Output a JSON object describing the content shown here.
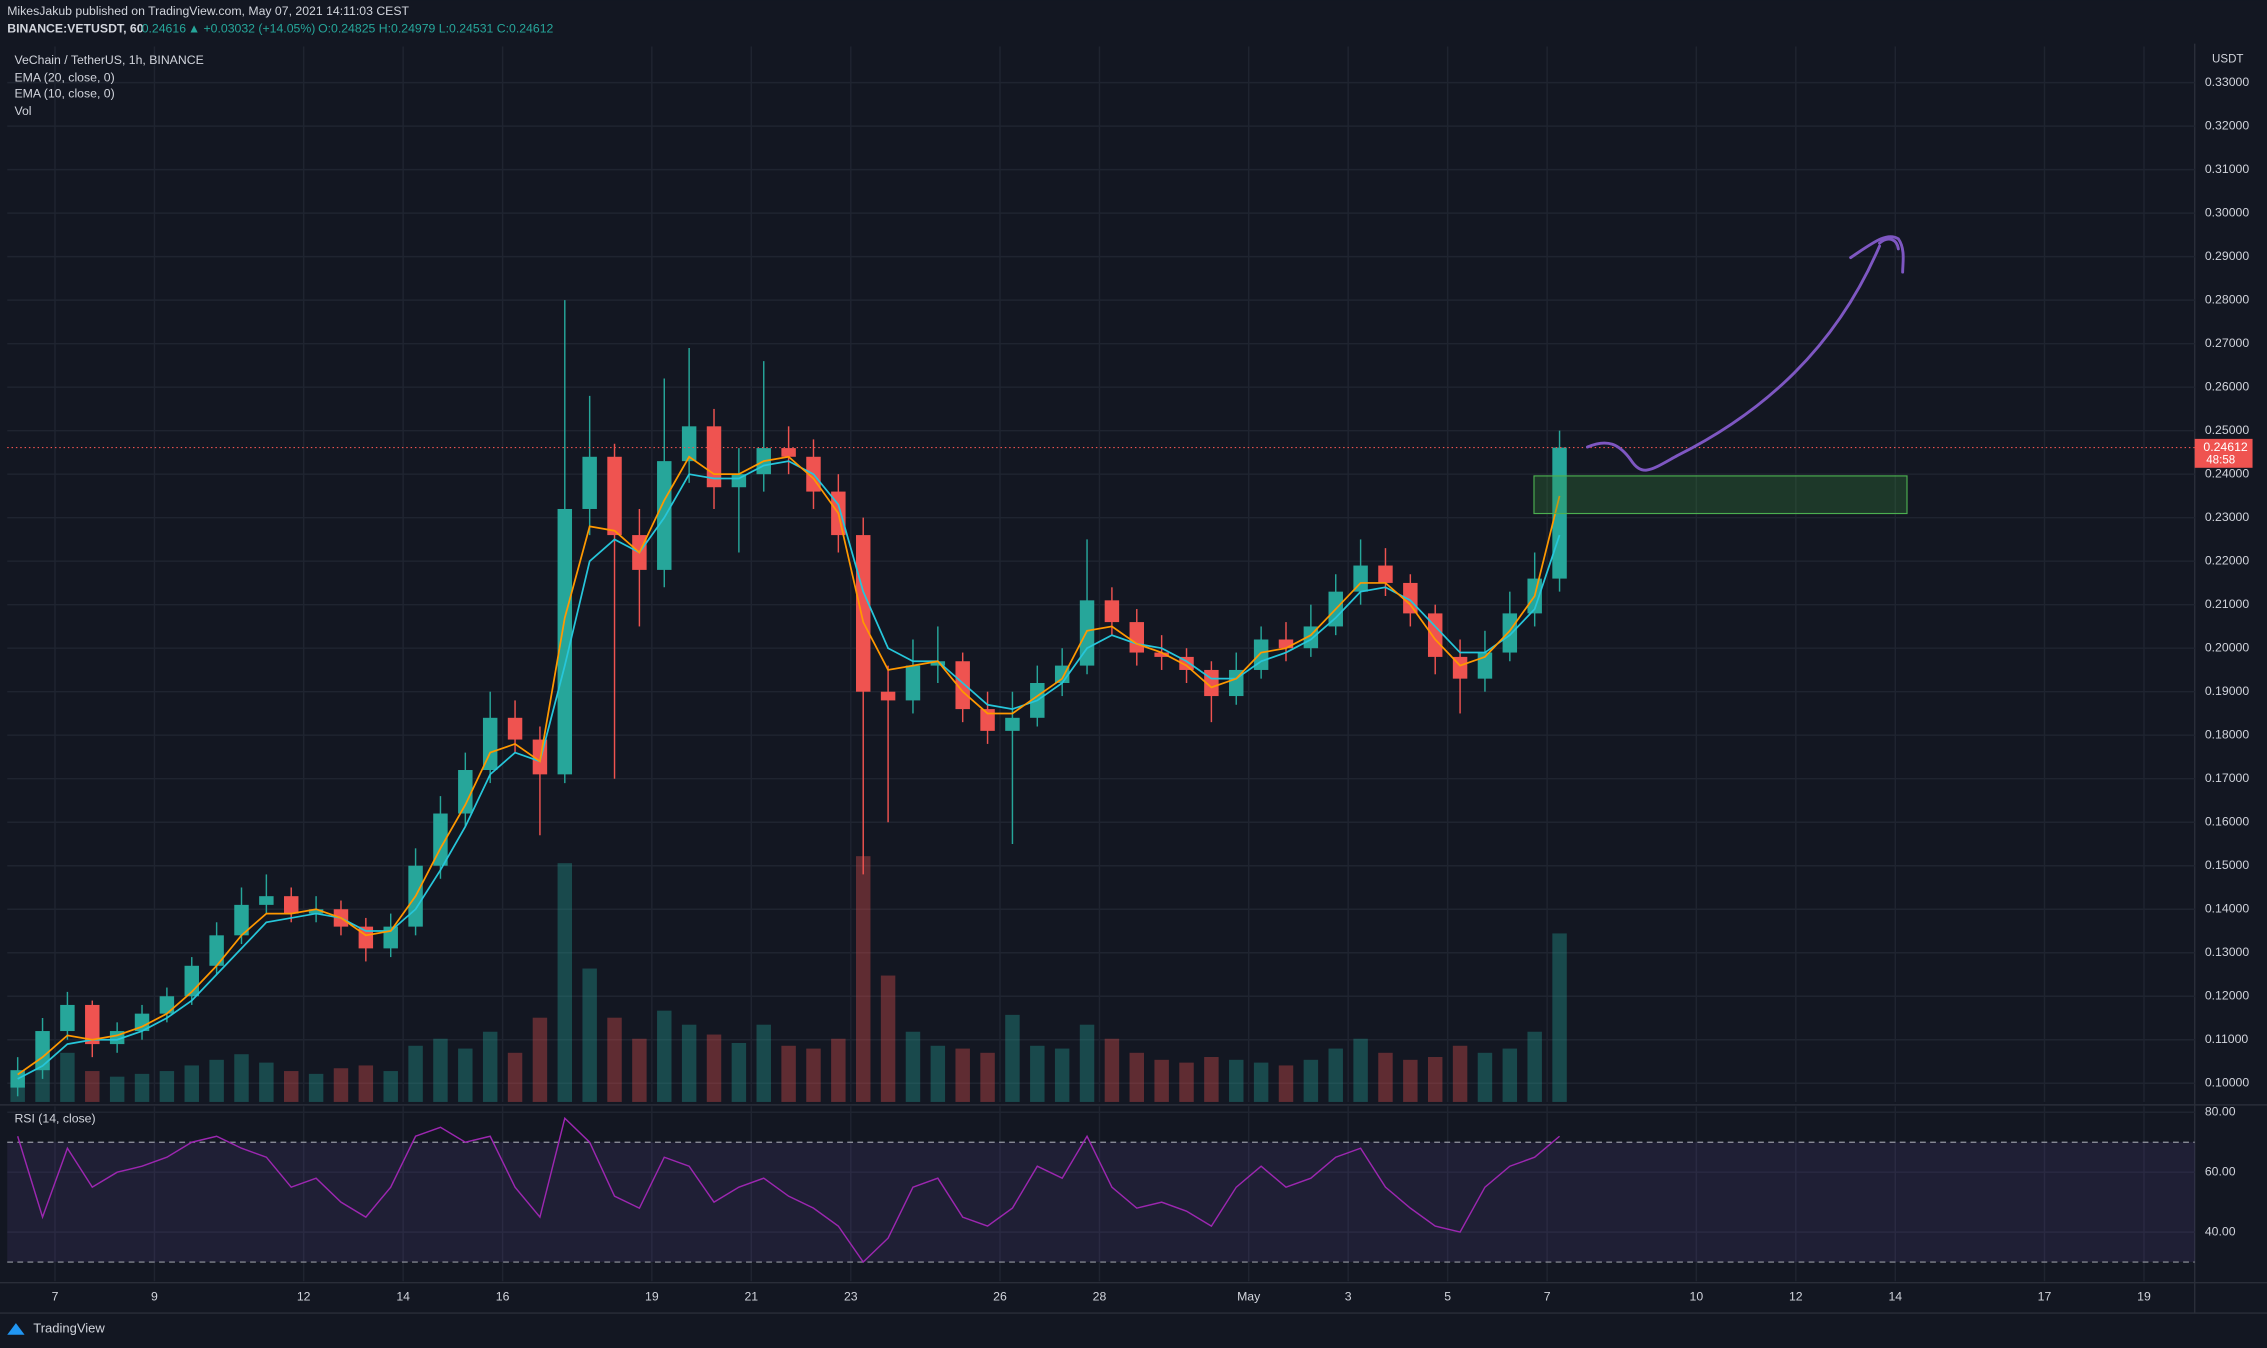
{
  "header": {
    "author_line": "MikesJakub published on TradingView.com, May 07, 2021 14:11:03 CEST",
    "symbol": "BINANCE:VETUSDT, 60",
    "price": "0.24616",
    "change": "▲ +0.03032 (+14.05%)",
    "ohlc": "O:0.24825 H:0.24979 L:0.24531 C:0.24612",
    "countdown": "48:58",
    "brand": "TradingView"
  },
  "chart_data": [
    {
      "type": "candlestick",
      "title": "VeChain / TetherUS, 1h, BINANCE",
      "y_axis_label": "USDT",
      "up_color": "#26a69a",
      "down_color": "#ef5350",
      "x": [
        6.25,
        6.75,
        7.25,
        7.75,
        8.25,
        8.75,
        9.25,
        9.75,
        10.25,
        10.75,
        11.25,
        11.75,
        12.25,
        12.75,
        13.25,
        13.75,
        14.25,
        14.75,
        15.25,
        15.75,
        16.25,
        16.75,
        17.25,
        17.75,
        18.25,
        18.75,
        19.25,
        19.75,
        20.25,
        20.75,
        21.25,
        21.75,
        22.25,
        22.75,
        23.25,
        23.75,
        24.25,
        24.75,
        25.25,
        25.75,
        26.25,
        26.75,
        27.25,
        27.75,
        28.25,
        28.75,
        29.25,
        29.75,
        30.25,
        30.75,
        31.25,
        31.75,
        32.25,
        32.75,
        33.25,
        33.75,
        34.25,
        34.75,
        35.25,
        35.75,
        36.25,
        36.75,
        37.25
      ],
      "open": [
        0.099,
        0.103,
        0.112,
        0.118,
        0.109,
        0.112,
        0.116,
        0.12,
        0.127,
        0.134,
        0.141,
        0.143,
        0.139,
        0.14,
        0.136,
        0.131,
        0.136,
        0.15,
        0.162,
        0.172,
        0.184,
        0.179,
        0.171,
        0.232,
        0.244,
        0.226,
        0.218,
        0.243,
        0.251,
        0.237,
        0.24,
        0.246,
        0.244,
        0.236,
        0.226,
        0.19,
        0.188,
        0.196,
        0.197,
        0.186,
        0.181,
        0.184,
        0.192,
        0.196,
        0.211,
        0.206,
        0.199,
        0.198,
        0.195,
        0.189,
        0.195,
        0.202,
        0.2,
        0.205,
        0.213,
        0.219,
        0.215,
        0.208,
        0.198,
        0.193,
        0.199,
        0.208,
        0.216
      ],
      "high": [
        0.106,
        0.115,
        0.121,
        0.119,
        0.114,
        0.118,
        0.122,
        0.129,
        0.137,
        0.145,
        0.148,
        0.145,
        0.143,
        0.142,
        0.138,
        0.139,
        0.154,
        0.166,
        0.176,
        0.19,
        0.188,
        0.182,
        0.28,
        0.258,
        0.247,
        0.232,
        0.262,
        0.269,
        0.255,
        0.246,
        0.266,
        0.251,
        0.248,
        0.24,
        0.23,
        0.196,
        0.202,
        0.205,
        0.199,
        0.19,
        0.19,
        0.196,
        0.2,
        0.225,
        0.214,
        0.209,
        0.203,
        0.2,
        0.197,
        0.199,
        0.205,
        0.206,
        0.21,
        0.217,
        0.225,
        0.223,
        0.217,
        0.21,
        0.202,
        0.204,
        0.213,
        0.222,
        0.25
      ],
      "low": [
        0.097,
        0.101,
        0.11,
        0.106,
        0.107,
        0.11,
        0.114,
        0.118,
        0.125,
        0.132,
        0.139,
        0.137,
        0.137,
        0.134,
        0.128,
        0.129,
        0.134,
        0.147,
        0.159,
        0.169,
        0.176,
        0.157,
        0.169,
        0.226,
        0.17,
        0.205,
        0.214,
        0.238,
        0.232,
        0.222,
        0.236,
        0.24,
        0.232,
        0.222,
        0.148,
        0.16,
        0.185,
        0.192,
        0.183,
        0.178,
        0.155,
        0.182,
        0.189,
        0.194,
        0.203,
        0.196,
        0.195,
        0.192,
        0.183,
        0.187,
        0.193,
        0.197,
        0.198,
        0.203,
        0.21,
        0.212,
        0.205,
        0.194,
        0.185,
        0.19,
        0.197,
        0.205,
        0.213
      ],
      "close": [
        0.103,
        0.112,
        0.118,
        0.109,
        0.112,
        0.116,
        0.12,
        0.127,
        0.134,
        0.141,
        0.143,
        0.139,
        0.14,
        0.136,
        0.131,
        0.136,
        0.15,
        0.162,
        0.172,
        0.184,
        0.179,
        0.171,
        0.232,
        0.244,
        0.226,
        0.218,
        0.243,
        0.251,
        0.237,
        0.24,
        0.246,
        0.244,
        0.236,
        0.226,
        0.19,
        0.188,
        0.196,
        0.197,
        0.186,
        0.181,
        0.184,
        0.192,
        0.196,
        0.211,
        0.206,
        0.199,
        0.198,
        0.195,
        0.189,
        0.195,
        0.202,
        0.2,
        0.205,
        0.213,
        0.219,
        0.215,
        0.208,
        0.198,
        0.193,
        0.199,
        0.208,
        0.216,
        0.24612
      ],
      "series": [
        {
          "name": "EMA (20, close, 0)",
          "color": "#26c6da",
          "values": [
            0.101,
            0.104,
            0.109,
            0.11,
            0.11,
            0.112,
            0.115,
            0.119,
            0.125,
            0.131,
            0.137,
            0.138,
            0.139,
            0.138,
            0.135,
            0.135,
            0.14,
            0.149,
            0.159,
            0.171,
            0.176,
            0.174,
            0.196,
            0.22,
            0.225,
            0.222,
            0.23,
            0.24,
            0.239,
            0.239,
            0.242,
            0.243,
            0.24,
            0.233,
            0.213,
            0.2,
            0.197,
            0.197,
            0.192,
            0.187,
            0.186,
            0.188,
            0.192,
            0.2,
            0.203,
            0.201,
            0.2,
            0.197,
            0.193,
            0.193,
            0.197,
            0.199,
            0.202,
            0.207,
            0.213,
            0.214,
            0.211,
            0.205,
            0.199,
            0.199,
            0.203,
            0.209,
            0.226
          ]
        },
        {
          "name": "EMA (10, close, 0)",
          "color": "#ff9800",
          "values": [
            0.102,
            0.106,
            0.111,
            0.11,
            0.111,
            0.113,
            0.116,
            0.121,
            0.127,
            0.134,
            0.139,
            0.139,
            0.14,
            0.138,
            0.134,
            0.135,
            0.143,
            0.154,
            0.164,
            0.176,
            0.178,
            0.174,
            0.207,
            0.228,
            0.227,
            0.222,
            0.234,
            0.244,
            0.24,
            0.24,
            0.243,
            0.244,
            0.239,
            0.231,
            0.206,
            0.195,
            0.196,
            0.197,
            0.19,
            0.185,
            0.185,
            0.189,
            0.193,
            0.204,
            0.205,
            0.201,
            0.199,
            0.196,
            0.191,
            0.193,
            0.199,
            0.2,
            0.203,
            0.209,
            0.215,
            0.215,
            0.21,
            0.202,
            0.196,
            0.198,
            0.204,
            0.212,
            0.235
          ]
        }
      ],
      "volume": {
        "name": "Vol",
        "values": [
          20,
          28,
          35,
          22,
          18,
          20,
          22,
          26,
          30,
          34,
          28,
          22,
          20,
          24,
          26,
          22,
          40,
          45,
          38,
          50,
          35,
          60,
          170,
          95,
          60,
          45,
          65,
          55,
          48,
          42,
          55,
          40,
          38,
          45,
          175,
          90,
          50,
          40,
          38,
          35,
          62,
          40,
          38,
          55,
          45,
          35,
          30,
          28,
          32,
          30,
          28,
          26,
          30,
          38,
          45,
          35,
          30,
          32,
          40,
          35,
          38,
          50,
          120
        ]
      },
      "xlim": [
        6.04,
        50.02
      ],
      "xticks": [
        7,
        9,
        12,
        14,
        16,
        19,
        21,
        23,
        26,
        28,
        {
          "value": 31,
          "label": "May"
        },
        {
          "value": 33,
          "label": "3"
        },
        {
          "value": 35,
          "label": "5"
        },
        {
          "value": 37,
          "label": "7"
        },
        {
          "value": 40,
          "label": "10"
        },
        {
          "value": 42,
          "label": "12"
        },
        {
          "value": 44,
          "label": "14"
        },
        {
          "value": 47,
          "label": "17"
        },
        {
          "value": 49,
          "label": "19"
        }
      ],
      "ylim": [
        0.0957,
        0.3383
      ],
      "yticks": [
        {
          "value": 0.1,
          "label": "0.10000"
        },
        {
          "value": 0.11,
          "label": "0.11000"
        },
        {
          "value": 0.12,
          "label": "0.12000"
        },
        {
          "value": 0.13,
          "label": "0.13000"
        },
        {
          "value": 0.14,
          "label": "0.14000"
        },
        {
          "value": 0.15,
          "label": "0.15000"
        },
        {
          "value": 0.16,
          "label": "0.16000"
        },
        {
          "value": 0.17,
          "label": "0.17000"
        },
        {
          "value": 0.18,
          "label": "0.18000"
        },
        {
          "value": 0.19,
          "label": "0.19000"
        },
        {
          "value": 0.2,
          "label": "0.20000"
        },
        {
          "value": 0.21,
          "label": "0.21000"
        },
        {
          "value": 0.22,
          "label": "0.22000"
        },
        {
          "value": 0.23,
          "label": "0.23000"
        },
        {
          "value": 0.24,
          "label": "0.24000"
        },
        {
          "value": 0.25,
          "label": "0.25000"
        },
        {
          "value": 0.26,
          "label": "0.26000"
        },
        {
          "value": 0.27,
          "label": "0.27000"
        },
        {
          "value": 0.28,
          "label": "0.28000"
        },
        {
          "value": 0.29,
          "label": "0.29000"
        },
        {
          "value": 0.3,
          "label": "0.30000"
        },
        {
          "value": 0.31,
          "label": "0.31000"
        },
        {
          "value": 0.32,
          "label": "0.32000"
        },
        {
          "value": 0.33,
          "label": "0.33000"
        }
      ],
      "grid": true
    },
    {
      "type": "line",
      "title": "RSI (14, close)",
      "color": "#9c27b0",
      "band": [
        30,
        70
      ],
      "x": [
        6.25,
        6.75,
        7.25,
        7.75,
        8.25,
        8.75,
        9.25,
        9.75,
        10.25,
        10.75,
        11.25,
        11.75,
        12.25,
        12.75,
        13.25,
        13.75,
        14.25,
        14.75,
        15.25,
        15.75,
        16.25,
        16.75,
        17.25,
        17.75,
        18.25,
        18.75,
        19.25,
        19.75,
        20.25,
        20.75,
        21.25,
        21.75,
        22.25,
        22.75,
        23.25,
        23.75,
        24.25,
        24.75,
        25.25,
        25.75,
        26.25,
        26.75,
        27.25,
        27.75,
        28.25,
        28.75,
        29.25,
        29.75,
        30.25,
        30.75,
        31.25,
        31.75,
        32.25,
        32.75,
        33.25,
        33.75,
        34.25,
        34.75,
        35.25,
        35.75,
        36.25,
        36.75,
        37.25
      ],
      "values": [
        72,
        45,
        68,
        55,
        60,
        62,
        65,
        70,
        72,
        68,
        65,
        55,
        58,
        50,
        45,
        55,
        72,
        75,
        70,
        72,
        55,
        45,
        78,
        70,
        52,
        48,
        65,
        62,
        50,
        55,
        58,
        52,
        48,
        42,
        30,
        38,
        55,
        58,
        45,
        42,
        48,
        62,
        58,
        72,
        55,
        48,
        50,
        47,
        42,
        55,
        62,
        55,
        58,
        65,
        68,
        55,
        48,
        42,
        40,
        55,
        62,
        65,
        72
      ],
      "ylim": [
        23.6,
        82
      ],
      "yticks": [
        {
          "value": 80,
          "label": "80.00"
        },
        {
          "value": 60,
          "label": "60.00"
        },
        {
          "value": 40,
          "label": "40.00"
        }
      ]
    }
  ]
}
